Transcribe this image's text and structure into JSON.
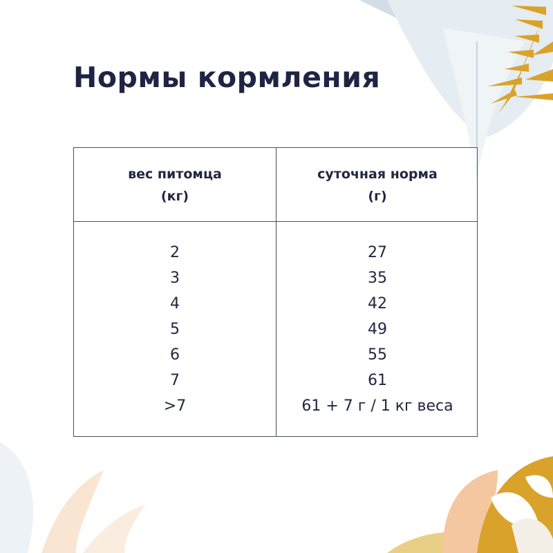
{
  "title": "Нормы кормления",
  "table": {
    "headers": [
      {
        "line1": "вес питомца",
        "line2": "(кг)"
      },
      {
        "line1": "суточная норма",
        "line2": "(г)"
      }
    ],
    "rows": [
      [
        "2",
        "27"
      ],
      [
        "3",
        "35"
      ],
      [
        "4",
        "42"
      ],
      [
        "5",
        "49"
      ],
      [
        "6",
        "55"
      ],
      [
        "7",
        "61"
      ],
      [
        ">7",
        "61 + 7 г / 1 кг веса"
      ]
    ]
  },
  "colors": {
    "title": "#1f2444",
    "gold": "#d9a22a",
    "leaf_blue": "#dbe4ec",
    "peach": "#f5c7a0"
  }
}
